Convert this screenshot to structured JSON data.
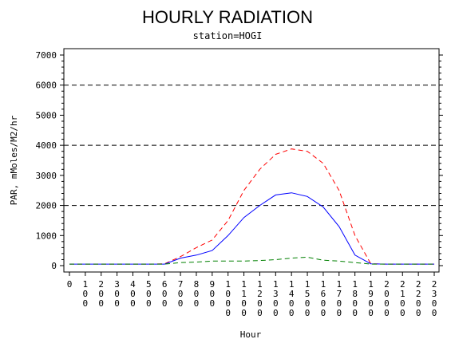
{
  "chart_data": {
    "type": "line",
    "title": "HOURLY RADIATION",
    "subtitle": "station=HOGI",
    "xlabel": "Hour",
    "ylabel": "PAR, mMoles/M2/hr",
    "x": [
      0,
      100,
      200,
      300,
      400,
      500,
      600,
      700,
      800,
      900,
      1000,
      1100,
      1200,
      1300,
      1400,
      1500,
      1600,
      1700,
      1800,
      1900,
      2000,
      2100,
      2200,
      2300
    ],
    "x_tick_labels": [
      "0",
      "100",
      "200",
      "300",
      "400",
      "500",
      "600",
      "700",
      "800",
      "900",
      "1000",
      "1100",
      "1200",
      "1300",
      "1400",
      "1500",
      "1600",
      "1700",
      "1800",
      "1900",
      "2000",
      "2100",
      "2200",
      "2300"
    ],
    "ylim": [
      0,
      7000
    ],
    "y_ticks": [
      0,
      1000,
      2000,
      3000,
      4000,
      5000,
      6000,
      7000
    ],
    "reference_lines": [
      2000,
      4000,
      6000
    ],
    "series": [
      {
        "color": "#ff0000",
        "dash": "dashed",
        "values": [
          50,
          50,
          50,
          50,
          50,
          50,
          60,
          300,
          600,
          850,
          1500,
          2500,
          3200,
          3700,
          3880,
          3800,
          3400,
          2500,
          1000,
          60,
          50,
          50,
          50,
          50
        ]
      },
      {
        "color": "#0000ff",
        "dash": "solid",
        "values": [
          50,
          50,
          50,
          50,
          50,
          50,
          50,
          250,
          350,
          500,
          1000,
          1600,
          2000,
          2350,
          2420,
          2300,
          1950,
          1300,
          350,
          60,
          50,
          50,
          50,
          50
        ]
      },
      {
        "color": "#008000",
        "dash": "dashed",
        "values": [
          50,
          50,
          50,
          50,
          50,
          50,
          50,
          100,
          120,
          150,
          150,
          150,
          170,
          200,
          250,
          280,
          180,
          150,
          100,
          50,
          50,
          50,
          50,
          50
        ]
      }
    ]
  }
}
